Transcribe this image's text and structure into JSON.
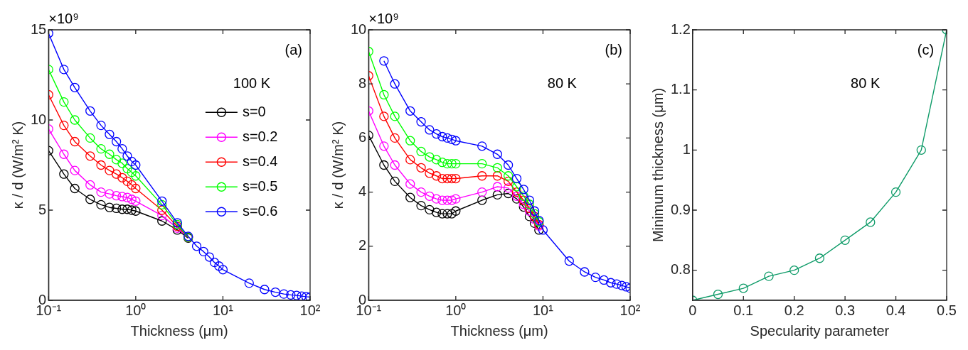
{
  "chart_data": [
    {
      "type": "line",
      "xlabel": "Thickness (μm)",
      "ylabel": "κ / d (W/m² K)",
      "log": "x",
      "grid": false,
      "marker": "circle",
      "line_style": "solid",
      "legend": "top right",
      "legend_title": "100 K",
      "annotations": [
        "×10⁹",
        "(a)"
      ],
      "xlim": [
        0.1,
        100
      ],
      "xticks": [
        {
          "value": 0.1,
          "label": "10⁻¹"
        },
        {
          "value": 1,
          "label": "10⁰"
        },
        {
          "value": 10,
          "label": "10¹"
        },
        {
          "value": 100,
          "label": "10²"
        }
      ],
      "ylim": [
        0,
        15
      ],
      "yticks": [
        0,
        5,
        10,
        15
      ],
      "x": [
        0.1,
        0.15,
        0.2,
        0.3,
        0.4,
        0.5,
        0.6,
        0.7,
        0.8,
        0.9,
        1,
        2,
        3,
        4,
        5,
        6,
        7,
        8,
        9,
        10,
        20,
        30,
        40,
        50,
        60,
        70,
        80,
        90,
        100
      ],
      "series": [
        {
          "name": "s=0",
          "color": "#000000",
          "values": [
            8.3,
            7.0,
            6.2,
            5.6,
            5.3,
            5.15,
            5.1,
            5.05,
            5.05,
            5.0,
            4.95,
            4.4,
            3.9,
            3.45,
            null,
            null,
            null,
            null,
            null,
            null,
            null,
            null,
            null,
            null,
            null,
            null,
            null,
            null,
            null
          ]
        },
        {
          "name": "s=0.2",
          "color": "#ff00ff",
          "values": [
            9.5,
            8.1,
            7.2,
            6.4,
            6.0,
            5.9,
            5.8,
            5.75,
            5.7,
            5.6,
            5.5,
            4.7,
            4.0,
            3.5,
            null,
            null,
            null,
            null,
            null,
            null,
            null,
            null,
            null,
            null,
            null,
            null,
            null,
            null,
            null
          ]
        },
        {
          "name": "s=0.4",
          "color": "#ff0000",
          "values": [
            11.4,
            9.7,
            8.8,
            8.0,
            7.5,
            7.2,
            7.0,
            6.8,
            6.6,
            6.4,
            6.2,
            5.0,
            4.1,
            3.5,
            null,
            null,
            null,
            null,
            null,
            null,
            null,
            null,
            null,
            null,
            null,
            null,
            null,
            null,
            null
          ]
        },
        {
          "name": "s=0.5",
          "color": "#00ff00",
          "values": [
            12.8,
            11.0,
            10.0,
            9.0,
            8.4,
            8.1,
            7.8,
            7.6,
            7.3,
            7.1,
            6.9,
            5.3,
            4.2,
            3.5,
            null,
            null,
            null,
            null,
            null,
            null,
            null,
            null,
            null,
            null,
            null,
            null,
            null,
            null,
            null
          ]
        },
        {
          "name": "s=0.6",
          "color": "#0000ff",
          "values": [
            14.8,
            12.8,
            11.8,
            10.5,
            9.7,
            9.2,
            8.8,
            8.4,
            8.0,
            7.7,
            7.5,
            5.5,
            4.3,
            3.55,
            3.0,
            2.7,
            2.4,
            2.1,
            1.9,
            1.7,
            0.95,
            0.6,
            0.45,
            0.35,
            0.3,
            0.27,
            0.23,
            0.2,
            0.18
          ]
        }
      ]
    },
    {
      "type": "line",
      "xlabel": "Thickness (μm)",
      "ylabel": "κ / d (W/m² K)",
      "log": "x",
      "grid": false,
      "marker": "circle",
      "line_style": "solid",
      "annotations": [
        "×10⁹",
        "(b)",
        "80 K"
      ],
      "xlim": [
        0.1,
        100
      ],
      "xticks": [
        {
          "value": 0.1,
          "label": "10⁻¹"
        },
        {
          "value": 1,
          "label": "10⁰"
        },
        {
          "value": 10,
          "label": "10¹"
        },
        {
          "value": 100,
          "label": "10²"
        }
      ],
      "ylim": [
        0,
        10
      ],
      "yticks": [
        0,
        2,
        4,
        6,
        8,
        10
      ],
      "x": [
        0.1,
        0.15,
        0.2,
        0.3,
        0.4,
        0.5,
        0.6,
        0.7,
        0.8,
        0.9,
        1,
        2,
        3,
        4,
        5,
        6,
        7,
        8,
        9,
        10,
        20,
        30,
        40,
        50,
        60,
        70,
        80,
        90,
        100
      ],
      "series": [
        {
          "color": "#000000",
          "values": [
            6.1,
            5.0,
            4.4,
            3.8,
            3.5,
            3.35,
            3.25,
            3.2,
            3.2,
            3.2,
            3.3,
            3.7,
            3.9,
            3.95,
            3.75,
            3.45,
            3.1,
            2.85,
            2.6,
            null,
            null,
            null,
            null,
            null,
            null,
            null,
            null,
            null,
            null
          ]
        },
        {
          "color": "#ff00ff",
          "values": [
            7.0,
            5.7,
            5.0,
            4.3,
            4.0,
            3.85,
            3.75,
            3.7,
            3.7,
            3.7,
            3.75,
            4.0,
            4.2,
            4.15,
            3.85,
            3.55,
            3.3,
            3.0,
            2.75,
            null,
            null,
            null,
            null,
            null,
            null,
            null,
            null,
            null,
            null
          ]
        },
        {
          "color": "#ff0000",
          "values": [
            8.3,
            6.8,
            6.0,
            5.2,
            4.9,
            4.7,
            4.6,
            4.5,
            4.5,
            4.5,
            4.5,
            4.6,
            4.6,
            4.4,
            4.0,
            3.7,
            3.4,
            3.1,
            2.8,
            null,
            null,
            null,
            null,
            null,
            null,
            null,
            null,
            null,
            null
          ]
        },
        {
          "color": "#00ff00",
          "values": [
            9.2,
            7.6,
            6.8,
            5.9,
            5.5,
            5.3,
            5.2,
            5.1,
            5.05,
            5.05,
            5.05,
            5.05,
            4.9,
            4.6,
            4.2,
            3.85,
            3.55,
            3.2,
            2.9,
            null,
            null,
            null,
            null,
            null,
            null,
            null,
            null,
            null,
            null
          ]
        },
        {
          "color": "#0000ff",
          "values": [
            null,
            8.85,
            8.0,
            7.0,
            6.6,
            6.3,
            6.15,
            6.05,
            6.0,
            5.95,
            5.9,
            5.7,
            5.4,
            5.0,
            4.5,
            4.1,
            3.7,
            3.3,
            2.95,
            2.6,
            1.45,
            1.05,
            0.85,
            0.75,
            0.65,
            0.6,
            0.55,
            0.5,
            0.45
          ]
        }
      ]
    },
    {
      "type": "line",
      "xlabel": "Specularity parameter",
      "ylabel": "Minimum thickness (μm)",
      "grid": false,
      "marker": "circle",
      "line_style": "solid",
      "annotations": [
        "(c)",
        "80 K"
      ],
      "xlim": [
        0,
        0.5
      ],
      "xticks": [
        0,
        0.1,
        0.2,
        0.3,
        0.4,
        0.5
      ],
      "ylim": [
        0.75,
        1.2
      ],
      "yticks": [
        0.8,
        0.9,
        1,
        1.1,
        1.2
      ],
      "x": [
        0,
        0.05,
        0.1,
        0.15,
        0.2,
        0.25,
        0.3,
        0.35,
        0.4,
        0.45,
        0.5
      ],
      "series": [
        {
          "color": "#0e9b68",
          "values": [
            0.75,
            0.76,
            0.77,
            0.79,
            0.8,
            0.82,
            0.85,
            0.88,
            0.93,
            1.0,
            1.2
          ]
        }
      ]
    }
  ]
}
